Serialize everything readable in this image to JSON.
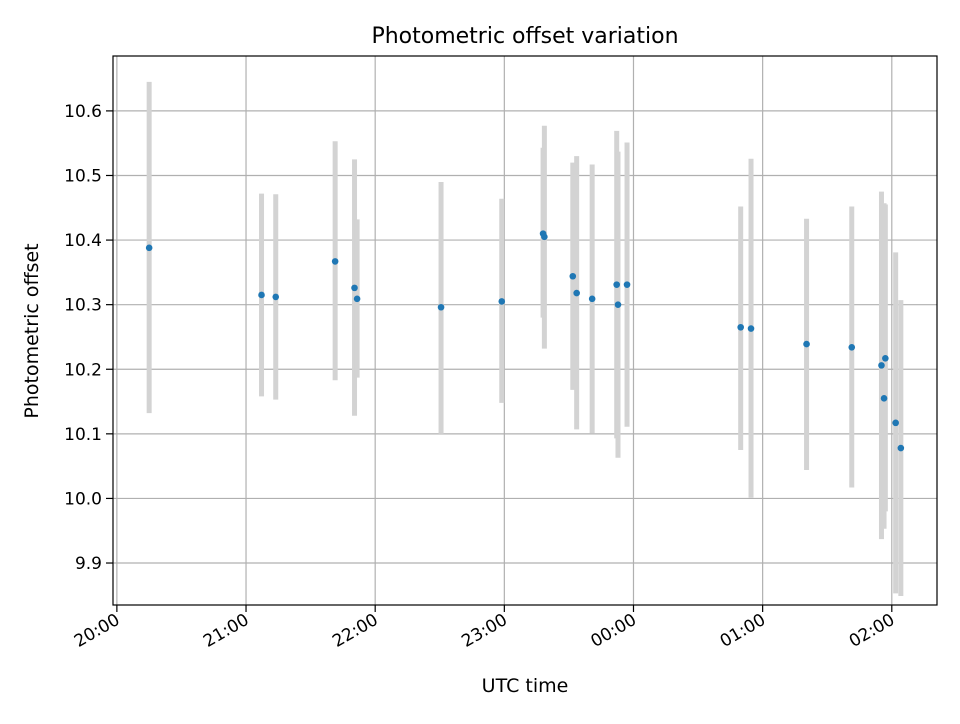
{
  "chart_data": {
    "type": "scatter",
    "title": "Photometric offset variation",
    "xlabel": "UTC time",
    "ylabel": "Photometric offset",
    "grid": true,
    "x_ticks": [
      "20:00",
      "21:00",
      "22:00",
      "23:00",
      "00:00",
      "01:00",
      "02:00"
    ],
    "x_tick_values": [
      20.0,
      21.0,
      22.0,
      23.0,
      24.0,
      25.0,
      26.0
    ],
    "y_ticks": [
      "9.9",
      "10.0",
      "10.1",
      "10.2",
      "10.3",
      "10.4",
      "10.5",
      "10.6"
    ],
    "y_tick_values": [
      9.9,
      10.0,
      10.1,
      10.2,
      10.3,
      10.4,
      10.5,
      10.6
    ],
    "xlim": [
      19.97,
      26.35
    ],
    "ylim": [
      9.835,
      10.685
    ],
    "colors": {
      "point": "#1f77b4",
      "errorbar": "#d3d3d3",
      "grid": "#b0b0b0"
    },
    "series": [
      {
        "points": [
          {
            "time": 20.25,
            "y": 10.388,
            "err_low": 10.132,
            "err_high": 10.645
          },
          {
            "time": 21.12,
            "y": 10.315,
            "err_low": 10.158,
            "err_high": 10.472
          },
          {
            "time": 21.23,
            "y": 10.312,
            "err_low": 10.153,
            "err_high": 10.471
          },
          {
            "time": 21.69,
            "y": 10.367,
            "err_low": 10.183,
            "err_high": 10.553
          },
          {
            "time": 21.84,
            "y": 10.326,
            "err_low": 10.128,
            "err_high": 10.525
          },
          {
            "time": 21.86,
            "y": 10.309,
            "err_low": 10.187,
            "err_high": 10.432
          },
          {
            "time": 22.51,
            "y": 10.296,
            "err_low": 10.1,
            "err_high": 10.49
          },
          {
            "time": 22.98,
            "y": 10.305,
            "err_low": 10.148,
            "err_high": 10.464
          },
          {
            "time": 23.3,
            "y": 10.41,
            "err_low": 10.28,
            "err_high": 10.543
          },
          {
            "time": 23.31,
            "y": 10.405,
            "err_low": 10.232,
            "err_high": 10.577
          },
          {
            "time": 23.53,
            "y": 10.344,
            "err_low": 10.168,
            "err_high": 10.52
          },
          {
            "time": 23.56,
            "y": 10.318,
            "err_low": 10.107,
            "err_high": 10.53
          },
          {
            "time": 23.68,
            "y": 10.309,
            "err_low": 10.101,
            "err_high": 10.517
          },
          {
            "time": 23.87,
            "y": 10.331,
            "err_low": 10.093,
            "err_high": 10.569
          },
          {
            "time": 23.88,
            "y": 10.3,
            "err_low": 10.063,
            "err_high": 10.537
          },
          {
            "time": 23.95,
            "y": 10.331,
            "err_low": 10.111,
            "err_high": 10.551
          },
          {
            "time": 24.83,
            "y": 10.265,
            "err_low": 10.075,
            "err_high": 10.452
          },
          {
            "time": 24.91,
            "y": 10.263,
            "err_low": 10.001,
            "err_high": 10.526
          },
          {
            "time": 25.34,
            "y": 10.239,
            "err_low": 10.044,
            "err_high": 10.433
          },
          {
            "time": 25.69,
            "y": 10.234,
            "err_low": 10.017,
            "err_high": 10.452
          },
          {
            "time": 25.92,
            "y": 10.206,
            "err_low": 9.937,
            "err_high": 10.475
          },
          {
            "time": 25.94,
            "y": 10.155,
            "err_low": 9.953,
            "err_high": 10.457
          },
          {
            "time": 25.95,
            "y": 10.217,
            "err_low": 9.98,
            "err_high": 10.455
          },
          {
            "time": 26.03,
            "y": 10.117,
            "err_low": 9.853,
            "err_high": 10.381
          },
          {
            "time": 26.07,
            "y": 10.078,
            "err_low": 9.849,
            "err_high": 10.307
          }
        ]
      }
    ]
  }
}
